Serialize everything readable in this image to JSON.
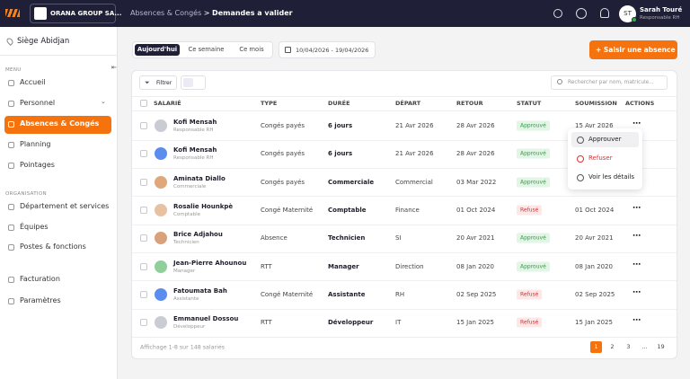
{
  "topbar": {
    "company": "ORANA GROUP SA...",
    "breadcrumb_parent": "Absences & Congés",
    "breadcrumb_separator": ">",
    "breadcrumb_current": "Demandes a valider",
    "avatar_initials": "ST",
    "user_name": "Sarah Touré",
    "user_role": "Responsable RH"
  },
  "sidebar": {
    "site": "Siège Abidjan",
    "sections": [
      {
        "label": "MENU",
        "items": [
          "Accueil",
          "Personnel",
          "Absences & Congés",
          "Planning",
          "Pointages"
        ]
      },
      {
        "label": "ORGANISATION",
        "items": [
          "Département et services",
          "Équipes",
          "Postes & fonctions"
        ]
      },
      {
        "items": [
          "Facturation",
          "Paramètres"
        ]
      }
    ]
  },
  "toolbar": {
    "tabs": [
      "Aujourd'hui",
      "Ce semaine",
      "Ce mois"
    ],
    "date_range": "10/04/2026 - 19/04/2026",
    "add_button": "Saisir une absence"
  },
  "table": {
    "filter": "Filtrer",
    "search_placeholder": "Rechercher par nom, matricule...",
    "columns": [
      "SALARIÉ",
      "TYPE",
      "DURÉE",
      "DÉPART",
      "RETOUR",
      "STATUT",
      "SOUMISSION",
      "ACTIONS"
    ],
    "rows": [
      {
        "name": "Kofi Mensah",
        "role": "Responsable RH",
        "type": "Congés payés",
        "duration": "6 jours",
        "start": "21 Avr 2026",
        "end": "28 Avr 2026",
        "status": "Approuvé",
        "submitted": "15 Avr 2026"
      },
      {
        "name": "Kofi Mensah",
        "role": "Responsable RH",
        "type": "Congés payés",
        "duration": "6 jours",
        "start": "21 Avr 2026",
        "end": "28 Avr 2026",
        "status": "Approuvé"
      },
      {
        "name": "Aminata Diallo",
        "role": "Commerciale",
        "type": "Congés payés",
        "duration": "Commerciale",
        "start": "Commercial",
        "end": "03 Mar 2022",
        "status": "Approuvé"
      },
      {
        "name": "Rosalie Hounkpè",
        "role": "Comptable",
        "type": "Congé Maternité",
        "duration": "Comptable",
        "start": "Finance",
        "end": "01 Oct 2024",
        "status": "Refusé",
        "submitted": "01 Oct 2024"
      },
      {
        "name": "Brice Adjahou",
        "role": "Technicien",
        "type": "Absence",
        "duration": "Technicien",
        "start": "SI",
        "end": "20 Avr 2021",
        "status": "Approuvé",
        "submitted": "20 Avr 2021"
      },
      {
        "name": "Jean-Pierre Ahounou",
        "role": "Manager",
        "type": "RTT",
        "duration": "Manager",
        "start": "Direction",
        "end": "08 Jan 2020",
        "status": "Approuvé",
        "submitted": "08 Jan 2020"
      },
      {
        "name": "Fatoumata Bah",
        "role": "Assistante",
        "type": "Congé Maternité",
        "duration": "Assistante",
        "start": "RH",
        "end": "02 Sep 2025",
        "status": "Refusé",
        "submitted": "02 Sep 2025"
      },
      {
        "name": "Emmanuel Dossou",
        "role": "Développeur",
        "type": "RTT",
        "duration": "Développeur",
        "start": "IT",
        "end": "15 Jan 2025",
        "status": "Refusé",
        "submitted": "15 Jan 2025"
      }
    ],
    "actions_menu": [
      "Approuver",
      "Refuser",
      "Voir les détails"
    ],
    "footer": "Affichage 1-8 sur 148 salariés",
    "pages": [
      "1",
      "2",
      "3",
      "...",
      "19"
    ]
  }
}
